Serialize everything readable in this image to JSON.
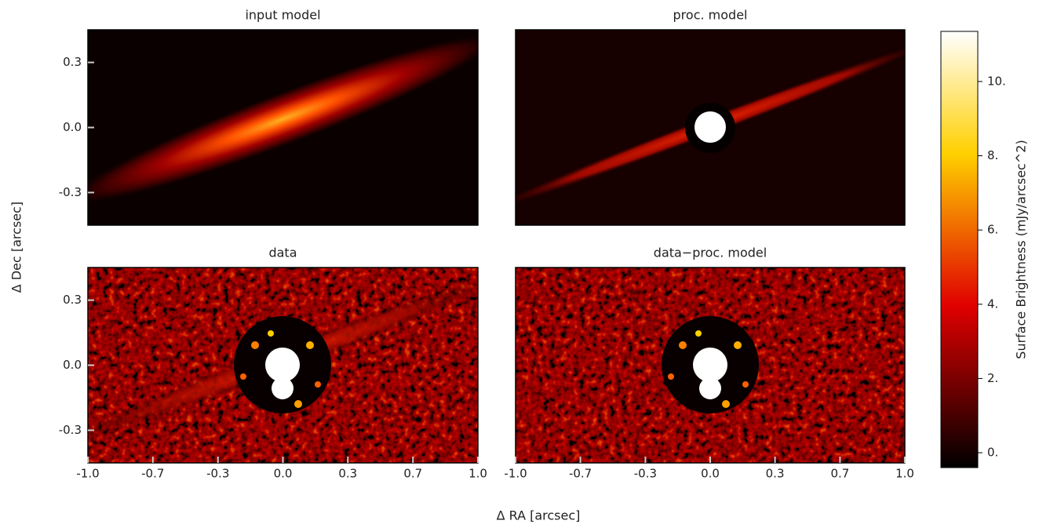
{
  "figure": {
    "xlabel": "Δ RA [arcsec]",
    "ylabel": "Δ Dec [arcsec]"
  },
  "chart_data": [
    {
      "type": "image",
      "title": "input model",
      "xlim": [
        -1,
        1
      ],
      "ylim": [
        -0.5,
        0.5
      ],
      "yticks": [
        {
          "value": -0.333,
          "label": "-0.3"
        },
        {
          "value": 0,
          "label": "0.0"
        },
        {
          "value": 0.333,
          "label": "0.3"
        }
      ]
    },
    {
      "type": "image",
      "title": "proc. model",
      "xlim": [
        -1,
        1
      ],
      "ylim": [
        -0.5,
        0.5
      ]
    },
    {
      "type": "image",
      "title": "data",
      "xlim": [
        -1,
        1
      ],
      "ylim": [
        -0.5,
        0.5
      ],
      "xticks": [
        {
          "value": -1,
          "label": "-1.0"
        },
        {
          "value": -0.667,
          "label": "-0.7"
        },
        {
          "value": -0.333,
          "label": "-0.3"
        },
        {
          "value": 0,
          "label": "0.0"
        },
        {
          "value": 0.333,
          "label": "0.3"
        },
        {
          "value": 0.667,
          "label": "0.7"
        },
        {
          "value": 1,
          "label": "1.0"
        }
      ],
      "yticks": [
        {
          "value": -0.333,
          "label": "-0.3"
        },
        {
          "value": 0,
          "label": "0.0"
        },
        {
          "value": 0.333,
          "label": "0.3"
        }
      ]
    },
    {
      "type": "image",
      "title": "data−proc. model",
      "xlim": [
        -1,
        1
      ],
      "ylim": [
        -0.5,
        0.5
      ],
      "xticks": [
        {
          "value": -1,
          "label": "-1.0"
        },
        {
          "value": -0.667,
          "label": "-0.7"
        },
        {
          "value": -0.333,
          "label": "-0.3"
        },
        {
          "value": 0,
          "label": "0.0"
        },
        {
          "value": 0.333,
          "label": "0.3"
        },
        {
          "value": 0.667,
          "label": "0.7"
        },
        {
          "value": 1,
          "label": "1.0"
        }
      ]
    },
    {
      "type": "colorbar",
      "colormap": "hot",
      "label": "Surface Brightness (mJy/arcsec^2)",
      "ylim": [
        -0.4,
        11.35
      ],
      "yticks": [
        {
          "value": 0,
          "label": "0."
        },
        {
          "value": 2,
          "label": "2."
        },
        {
          "value": 4,
          "label": "4."
        },
        {
          "value": 6,
          "label": "6."
        },
        {
          "value": 8,
          "label": "8."
        },
        {
          "value": 10,
          "label": "10."
        }
      ]
    }
  ]
}
